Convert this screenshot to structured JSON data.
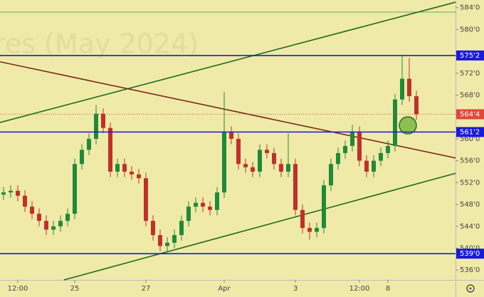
{
  "chart_data": {
    "type": "candlestick",
    "watermark": "res (May 2024)",
    "open": [
      549.8,
      550.2,
      550.5,
      549.6,
      547.6,
      546.3,
      545,
      543.4,
      544,
      545,
      546.3,
      555.4,
      558,
      560,
      564.6,
      562,
      554,
      555.4,
      554,
      553.5,
      552.8,
      545,
      542.4,
      540.4,
      541,
      542.4,
      545,
      547.6,
      548.3,
      547.6,
      547,
      550.2,
      561.3,
      560,
      555.4,
      554.8,
      554,
      558,
      557.4,
      555.4,
      554,
      555.4,
      547,
      543.7,
      543,
      543.7,
      551.5,
      555.4,
      557.4,
      558.7,
      561.3,
      556,
      554,
      556,
      557.4,
      558.7,
      567.2,
      571,
      567.8
    ],
    "high": [
      551.2,
      551.5,
      551.5,
      550.6,
      548.6,
      547.3,
      546,
      545,
      546,
      547.3,
      556.4,
      559,
      561,
      566.2,
      565.6,
      563,
      556.4,
      556.4,
      555,
      554.5,
      553.8,
      546,
      543.4,
      542,
      543.4,
      546,
      548.6,
      549.3,
      549.3,
      548.6,
      551.2,
      568.6,
      562.3,
      561,
      556.4,
      555.8,
      559,
      559,
      558.4,
      556.4,
      561,
      556.4,
      548,
      544.7,
      544.7,
      552.5,
      556.4,
      558.4,
      559.7,
      562.6,
      562.3,
      557,
      557,
      558.4,
      559.7,
      568.2,
      575.2,
      574.8,
      568.8
    ],
    "low": [
      548.8,
      549.2,
      548.6,
      546.6,
      545.3,
      544,
      542.4,
      542.4,
      543,
      544,
      545.3,
      554.4,
      557,
      559,
      561,
      553,
      553,
      553,
      552.5,
      551.8,
      544,
      541.4,
      539.4,
      539.4,
      540,
      541.4,
      544,
      546.6,
      546.6,
      546,
      546,
      549.2,
      559,
      554.4,
      553.8,
      553,
      553,
      556.4,
      554.4,
      553,
      553,
      546,
      542.7,
      541.6,
      542,
      542.7,
      550.5,
      554.4,
      556.4,
      557.7,
      555,
      553,
      553,
      555,
      556.4,
      557.7,
      566.2,
      566.8,
      563.5
    ],
    "close": [
      550.2,
      550.5,
      549.6,
      547.6,
      546.3,
      545,
      543.4,
      544,
      545,
      546.3,
      555.4,
      558,
      560,
      564.6,
      562,
      554,
      555.4,
      554,
      553.5,
      552.8,
      545,
      542.4,
      540.4,
      541,
      542.4,
      545,
      547.6,
      548.3,
      547.6,
      547,
      550.2,
      561.3,
      560,
      555.4,
      554.8,
      554,
      558,
      557.4,
      555.4,
      554,
      555.4,
      547,
      543.7,
      543,
      543.7,
      551.5,
      555.4,
      557.4,
      558.7,
      561.3,
      556,
      554,
      556,
      557.4,
      558.7,
      567.2,
      571,
      567.8,
      564.5
    ],
    "up_color": "#1f8a3a",
    "down_color": "#c0302a",
    "xlim": [
      -0.5,
      63.5
    ],
    "xticks": [
      {
        "value": 2,
        "label": "12:00"
      },
      {
        "value": 10,
        "label": "25"
      },
      {
        "value": 20,
        "label": "27"
      },
      {
        "value": 31,
        "label": "Apr"
      },
      {
        "value": 41,
        "label": "3"
      },
      {
        "value": 50,
        "label": "12:00"
      },
      {
        "value": 54,
        "label": "8"
      }
    ],
    "ylim": [
      534.2,
      585.4
    ],
    "yticks": [
      {
        "value": 584,
        "label": "584'0"
      },
      {
        "value": 580,
        "label": "580'0"
      },
      {
        "value": 572,
        "label": "572'0"
      },
      {
        "value": 568,
        "label": "568'0"
      },
      {
        "value": 560,
        "label": "560'0"
      },
      {
        "value": 556,
        "label": "556'0"
      },
      {
        "value": 552,
        "label": "552'0"
      },
      {
        "value": 548,
        "label": "548'0"
      },
      {
        "value": 544,
        "label": "544'0"
      },
      {
        "value": 540,
        "label": "540'0"
      },
      {
        "value": 536,
        "label": "536'0"
      }
    ],
    "levels": [
      {
        "value": 575.25,
        "label": "575'2",
        "color": "#1a1adb"
      },
      {
        "value": 561.25,
        "label": "561'2",
        "color": "#1a1adb"
      },
      {
        "value": 539,
        "label": "539'0",
        "color": "#1a1adb"
      }
    ],
    "last_price": {
      "value": 564.5,
      "label": "564'4",
      "color": "#e0483a"
    },
    "trendlines": [
      {
        "color": "#1e6b1e",
        "start": [
          -0.5,
          563
        ],
        "end": [
          63.5,
          585
        ]
      },
      {
        "color": "#1e6b1e",
        "start": [
          8.5,
          534.2
        ],
        "end": [
          63.5,
          553.7
        ]
      },
      {
        "color": "#7a2a1a",
        "start": [
          -0.5,
          574.1
        ],
        "end": [
          63.5,
          556.5
        ]
      }
    ]
  }
}
